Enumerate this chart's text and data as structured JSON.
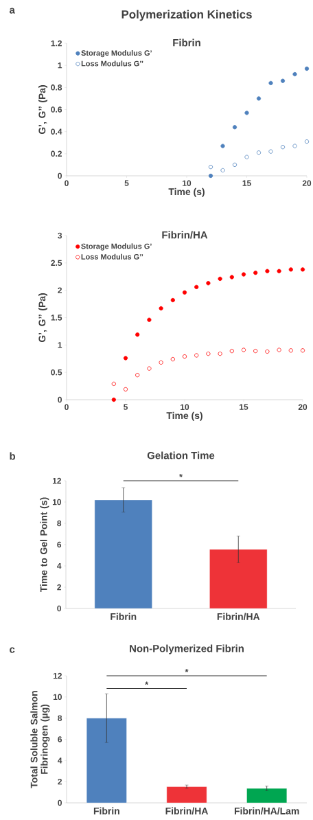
{
  "chart_data": [
    {
      "type": "scatter",
      "title": "Fibrin",
      "xlabel": "Time (s)",
      "ylabel": "G’, G’’ (Pa)",
      "annotations": [
        "a",
        "Polymerization Kinetics"
      ],
      "xlim": [
        0,
        20
      ],
      "xticks": [
        0,
        5,
        10,
        15,
        20
      ],
      "ylim": [
        0,
        1.2
      ],
      "yticks": [
        0,
        0.2,
        0.4,
        0.6,
        0.8,
        1,
        1.2
      ],
      "legend": "top left",
      "marker": "circle",
      "x": [
        12,
        13,
        14,
        15,
        16,
        17,
        18,
        19,
        20
      ],
      "series": [
        {
          "name": "Storage Modulus G’",
          "color": "#4f81bd",
          "values": [
            0,
            0.27,
            0.44,
            0.57,
            0.7,
            0.84,
            0.86,
            0.92,
            0.97
          ]
        },
        {
          "name": "Loss Modulus G’’",
          "color": "#4f81bd",
          "values": [
            0.08,
            0.05,
            0.1,
            0.17,
            0.21,
            0.22,
            0.26,
            0.27,
            0.31
          ]
        }
      ]
    },
    {
      "type": "scatter",
      "title": "Fibrin/HA",
      "xlabel": "Time (s)",
      "ylabel": "G’, G’’ (Pa)",
      "xlim": [
        0,
        20
      ],
      "xticks": [
        0,
        5,
        10,
        15,
        20
      ],
      "ylim": [
        0,
        3
      ],
      "yticks": [
        0,
        0.5,
        1,
        1.5,
        2,
        2.5,
        3
      ],
      "legend": "top left",
      "marker": "circle",
      "x": [
        4,
        5,
        6,
        7,
        8,
        9,
        10,
        11,
        12,
        13,
        14,
        15,
        16,
        17,
        18,
        19,
        20
      ],
      "series": [
        {
          "name": "Storage Modulus G’",
          "color": "#ff0000",
          "values": [
            0,
            0.76,
            1.19,
            1.46,
            1.67,
            1.82,
            1.96,
            2.06,
            2.13,
            2.21,
            2.24,
            2.29,
            2.32,
            2.35,
            2.35,
            2.38,
            2.38
          ]
        },
        {
          "name": "Loss Modulus G’’",
          "color": "#ff0000",
          "values": [
            0.29,
            0.19,
            0.45,
            0.57,
            0.68,
            0.74,
            0.79,
            0.81,
            0.84,
            0.84,
            0.89,
            0.91,
            0.89,
            0.88,
            0.91,
            0.9,
            0.9
          ]
        }
      ]
    },
    {
      "type": "bar",
      "title": "Gelation Time",
      "ylabel": "Time to Gel Point (s)",
      "annotations": [
        "b",
        "*"
      ],
      "categories": [
        "Fibrin",
        "Fibrin/HA"
      ],
      "values": [
        10.2,
        5.55
      ],
      "errors": [
        1.15,
        1.25
      ],
      "colors": [
        "#4f81bd",
        "#ee3338"
      ],
      "ylim": [
        0,
        12
      ],
      "yticks": [
        0,
        2,
        4,
        6,
        8,
        10,
        12
      ]
    },
    {
      "type": "bar",
      "title": "Non-Polymerized Fibrin",
      "ylabel": "Total Soluble Salmon Fibrinogen (µg)",
      "annotations": [
        "c",
        "*",
        "*"
      ],
      "categories": [
        "Fibrin",
        "Fibrin/HA",
        "Fibrin/HA/Lam"
      ],
      "values": [
        8.0,
        1.53,
        1.36
      ],
      "errors": [
        2.3,
        0.15,
        0.22
      ],
      "colors": [
        "#4f81bd",
        "#ee3338",
        "#00a651"
      ],
      "ylim": [
        0,
        12
      ],
      "yticks": [
        0,
        2,
        4,
        6,
        8,
        10,
        12
      ]
    }
  ]
}
